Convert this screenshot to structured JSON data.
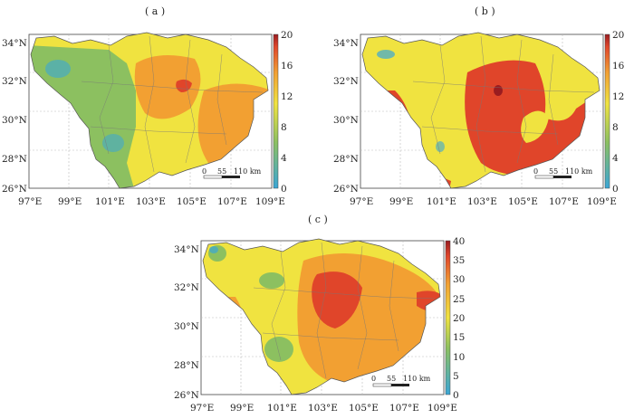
{
  "panels": [
    {
      "label": "( a )",
      "lon_ticks": [
        "97°E",
        "99°E",
        "101°E",
        "103°E",
        "105°E",
        "107°E",
        "109°E"
      ],
      "lat_ticks": [
        "34°N",
        "32°N",
        "30°N",
        "28°N",
        "26°N"
      ],
      "colorbar_ticks": [
        "20",
        "16",
        "12",
        "8",
        "4",
        "0"
      ],
      "scale": {
        "t0": "0",
        "t1": "55",
        "t2": "110 km"
      }
    },
    {
      "label": "( b )",
      "lon_ticks": [
        "97°E",
        "99°E",
        "101°E",
        "103°E",
        "105°E",
        "107°E",
        "109°E"
      ],
      "lat_ticks": [
        "34°N",
        "32°N",
        "30°N",
        "28°N",
        "26°N"
      ],
      "colorbar_ticks": [
        "20",
        "16",
        "12",
        "8",
        "4",
        "0"
      ],
      "scale": {
        "t0": "0",
        "t1": "55",
        "t2": "110 km"
      }
    },
    {
      "label": "( c )",
      "lon_ticks": [
        "97°E",
        "99°E",
        "101°E",
        "103°E",
        "105°E",
        "107°E",
        "109°E"
      ],
      "lat_ticks": [
        "34°N",
        "32°N",
        "30°N",
        "28°N",
        "26°N"
      ],
      "colorbar_ticks": [
        "40",
        "35",
        "30",
        "25",
        "20",
        "15",
        "10",
        "5",
        "0"
      ],
      "scale": {
        "t0": "0",
        "t1": "55",
        "t2": "110 km"
      }
    }
  ],
  "colors": {
    "blue": "#3aa6d6",
    "green": "#8cc060",
    "yellow": "#f0e340",
    "orange": "#f2a032",
    "red": "#e0452a",
    "darkred": "#9a1c20",
    "boundary": "#555555"
  }
}
